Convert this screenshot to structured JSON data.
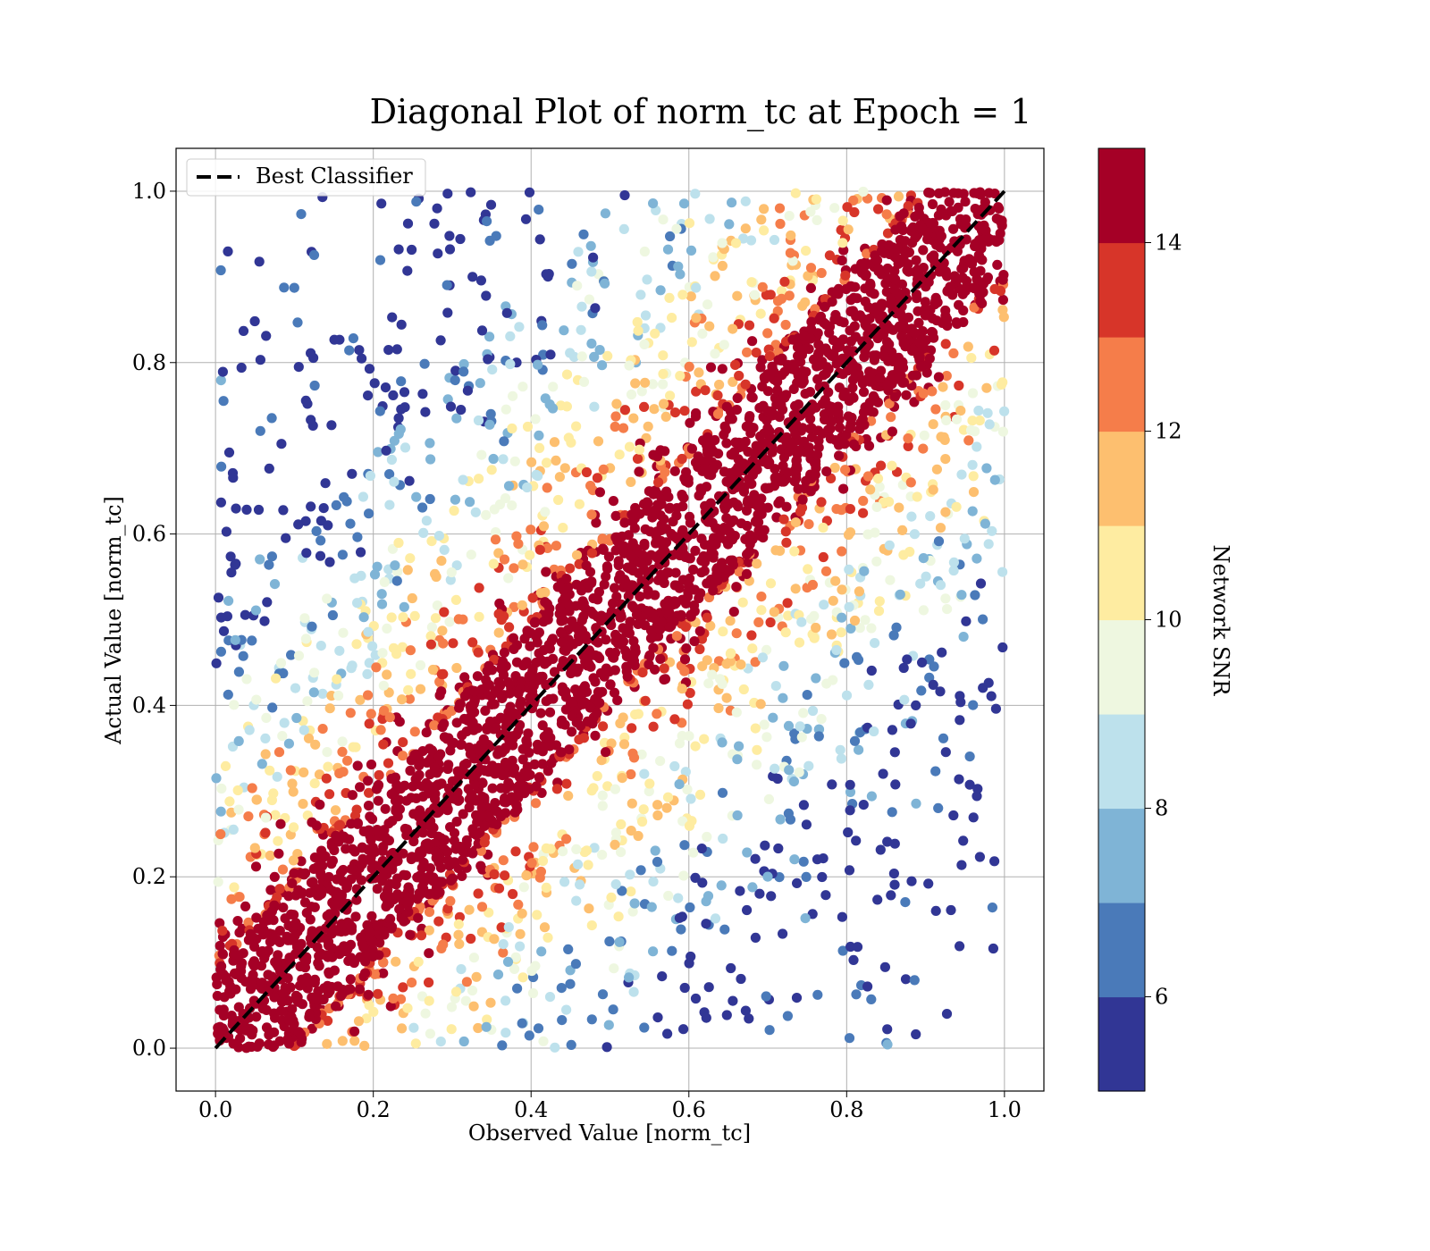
{
  "chart_data": {
    "type": "scatter",
    "title": "Diagonal Plot of norm_tc at Epoch = 1",
    "xlabel": "Observed Value [norm_tc]",
    "ylabel": "Actual Value [norm_tc]",
    "xlim": [
      -0.05,
      1.05
    ],
    "ylim": [
      -0.05,
      1.05
    ],
    "xticks": [
      "0.0",
      "0.2",
      "0.4",
      "0.6",
      "0.8",
      "1.0"
    ],
    "yticks": [
      "0.0",
      "0.2",
      "0.4",
      "0.6",
      "0.8",
      "1.0"
    ],
    "grid": true,
    "legend": {
      "placement": "upper-left",
      "entries": [
        {
          "label": "Best Classifier",
          "style": "dashed",
          "color": "#000000"
        }
      ]
    },
    "reference_line": {
      "label": "Best Classifier",
      "x": [
        0.0,
        1.0
      ],
      "y": [
        0.0,
        1.0
      ],
      "style": "dashed",
      "color": "#000000"
    },
    "colorbar": {
      "label": "Network SNR",
      "range": [
        5,
        15
      ],
      "ticks": [
        6,
        8,
        10,
        12,
        14
      ],
      "bins": [
        {
          "from": 5,
          "to": 6,
          "color": "#313695"
        },
        {
          "from": 6,
          "to": 7,
          "color": "#4a7ab9"
        },
        {
          "from": 7,
          "to": 8,
          "color": "#7fb4d6"
        },
        {
          "from": 8,
          "to": 9,
          "color": "#bde1ec"
        },
        {
          "from": 9,
          "to": 10,
          "color": "#eef7e0"
        },
        {
          "from": 10,
          "to": 11,
          "color": "#feeca1"
        },
        {
          "from": 11,
          "to": 12,
          "color": "#fdbf6f"
        },
        {
          "from": 12,
          "to": 13,
          "color": "#f57d4a"
        },
        {
          "from": 13,
          "to": 14,
          "color": "#d73529"
        },
        {
          "from": 14,
          "to": 15,
          "color": "#a50026"
        }
      ]
    },
    "series": [
      {
        "distribution": "dense scatter of predicted vs actual norm_tc on [0,1]; points near the diagonal have high network SNR (≥14), points far from the diagonal have low SNR (5–8)",
        "x_range": [
          0.0,
          1.0
        ],
        "y_range": [
          0.0,
          1.0
        ],
        "high_snr_band_halfwidth": 0.1
      }
    ]
  }
}
